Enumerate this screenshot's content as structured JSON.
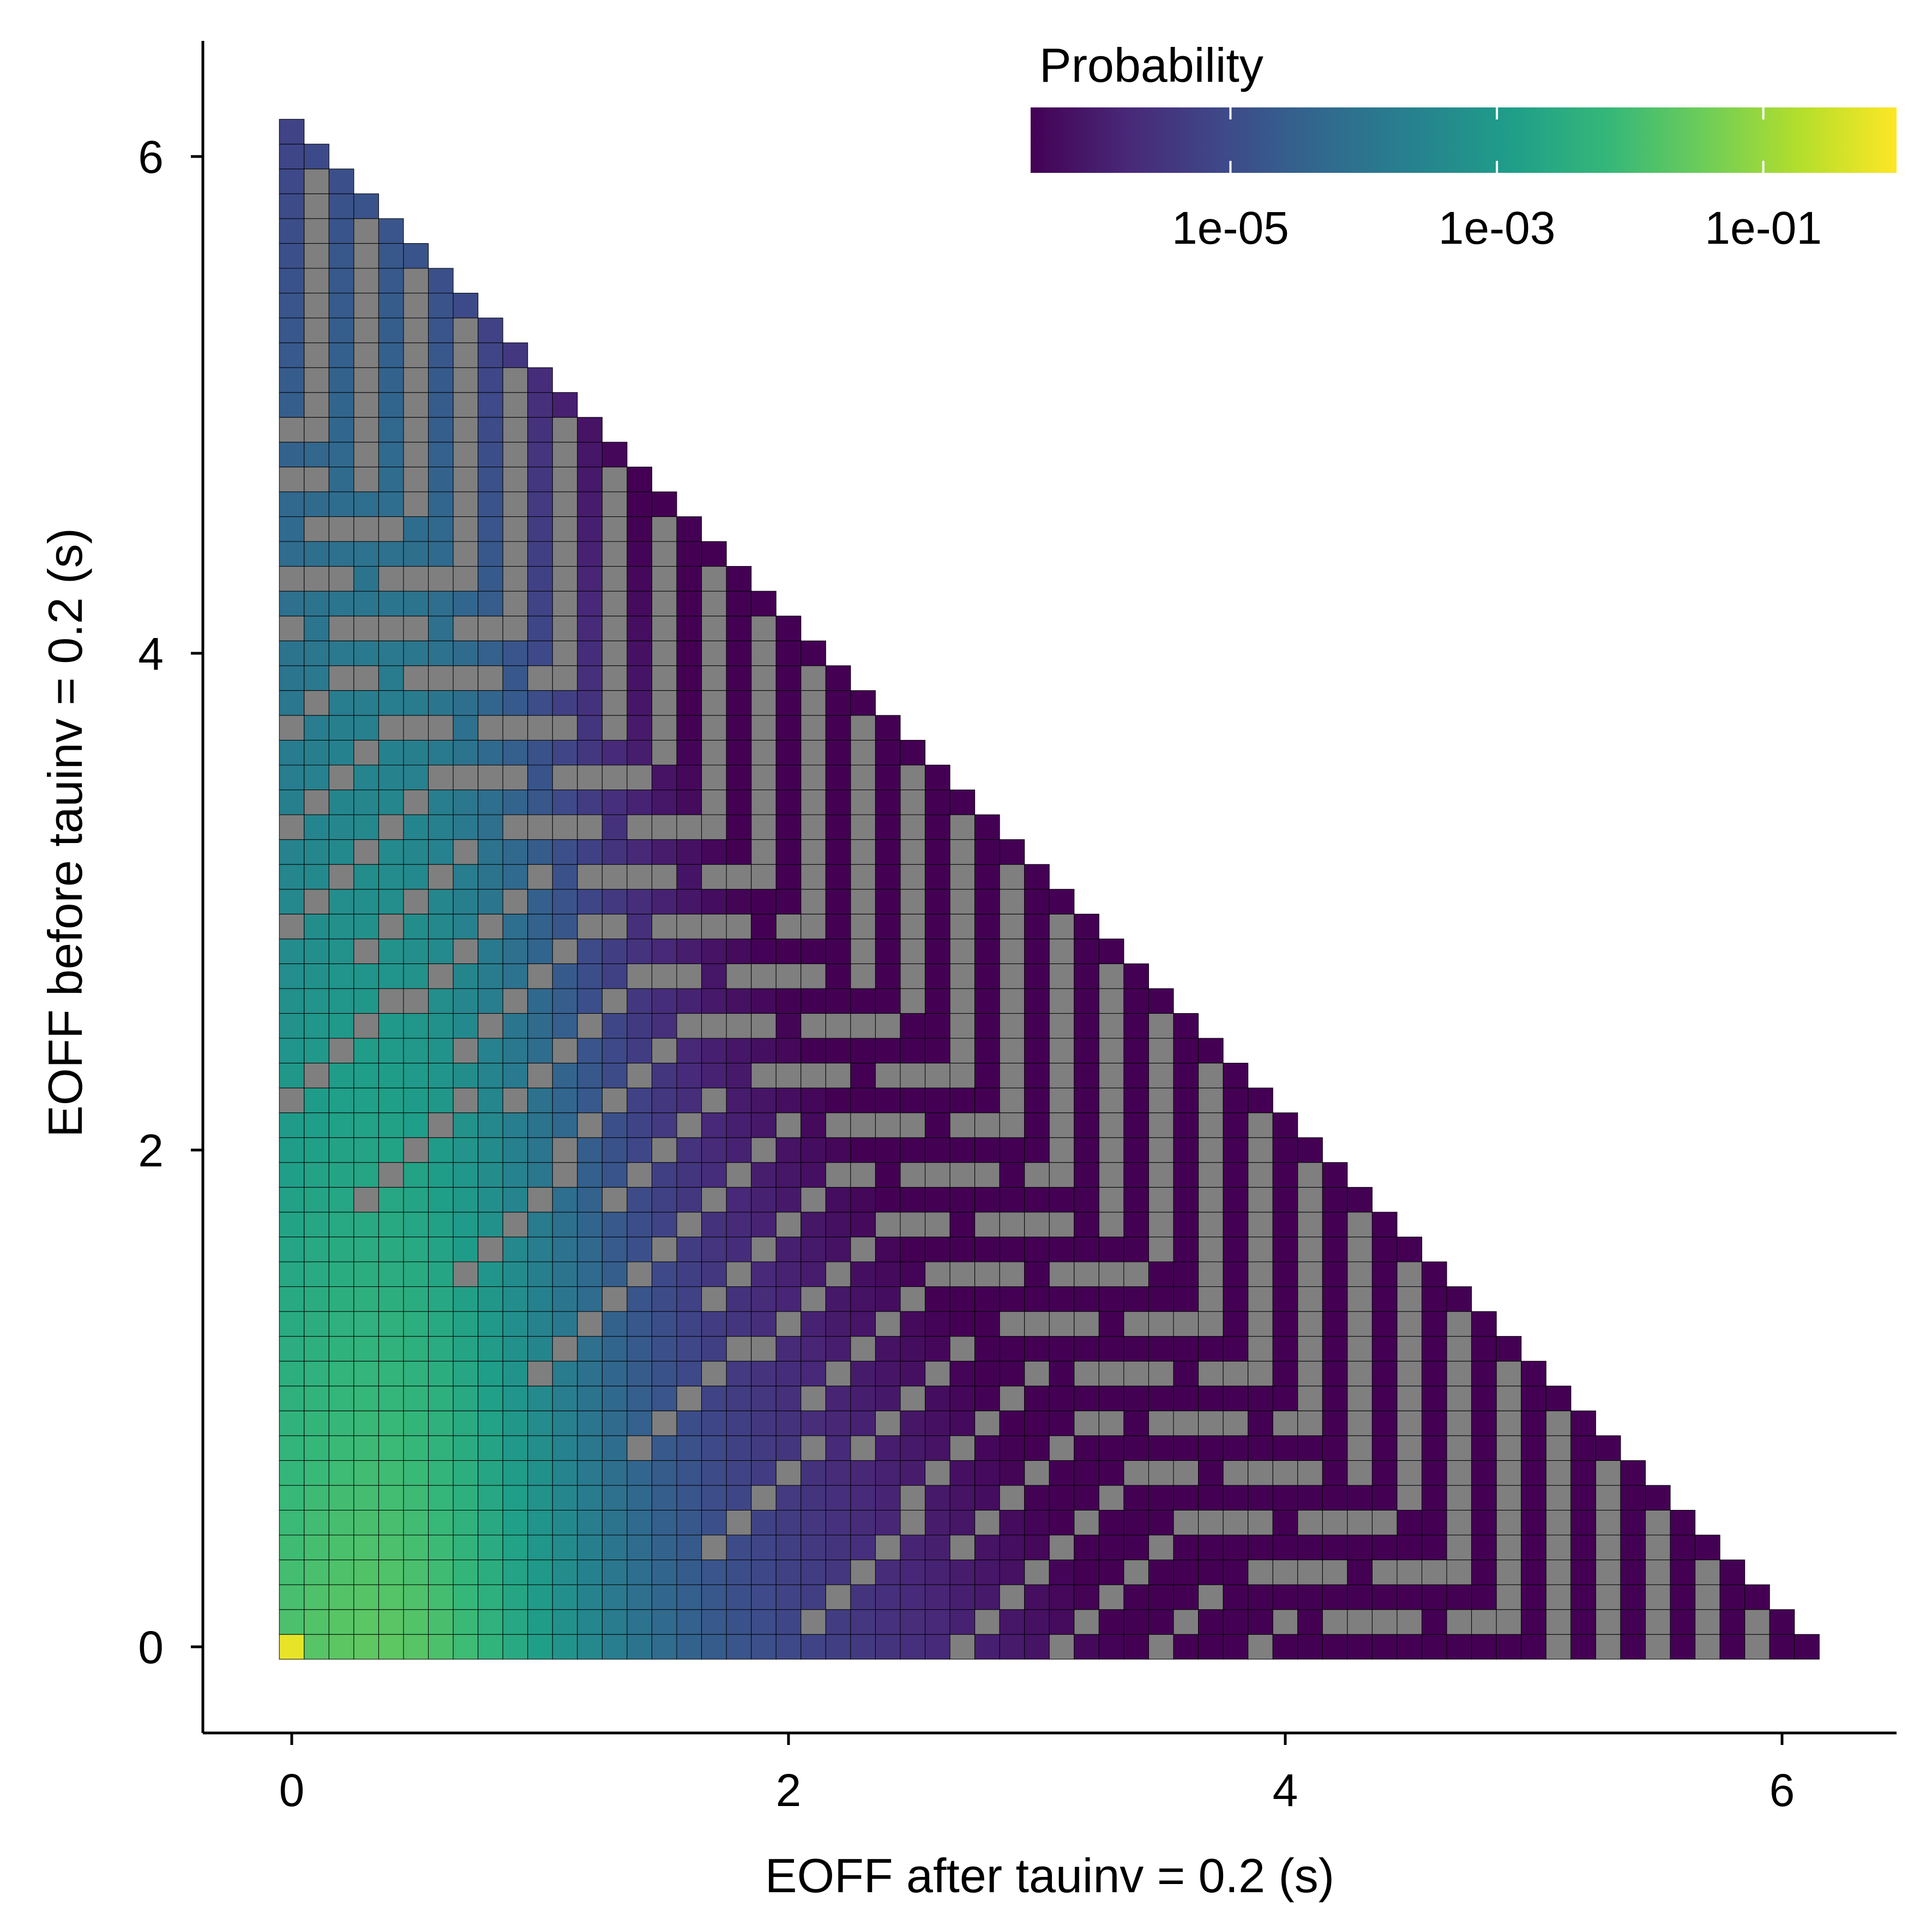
{
  "chart_data": {
    "type": "heatmap",
    "xlabel": "EOFF after tauinv = 0.2 (s)",
    "ylabel": "EOFF before tauinv = 0.2 (s)",
    "xlim": [
      -0.35,
      6.45
    ],
    "ylim": [
      -0.35,
      6.45
    ],
    "x_ticks": [
      0,
      2,
      4,
      6
    ],
    "y_ticks": [
      0,
      2,
      4,
      6
    ],
    "x_tick_labels": [
      "0",
      "2",
      "4",
      "6"
    ],
    "y_tick_labels": [
      "0",
      "2",
      "4",
      "6"
    ],
    "cell_size": 0.1,
    "domain": "x + y <= 6.1",
    "grid": false,
    "na_color": "#7f7f7f",
    "cell_border_color": "#000000",
    "colorscale": "viridis",
    "scale": "log10",
    "legend": {
      "title": "Probability",
      "position": "top-right",
      "range_log10": [
        -6.5,
        0
      ],
      "breaks_log10": [
        -5,
        -3,
        -1
      ],
      "labels": [
        "1e-05",
        "1e-03",
        "1e-01"
      ]
    },
    "point_mass": {
      "x": 0,
      "y": 0,
      "probability": 0.6
    },
    "log10_probability_model": "log10 p(x,y) = -3.0 + 1.8*exp(-((x-0.5)^2)/0.6) - 1.05*x - 0.55*y; cells beyond the parity-banded diagonal are NA"
  }
}
